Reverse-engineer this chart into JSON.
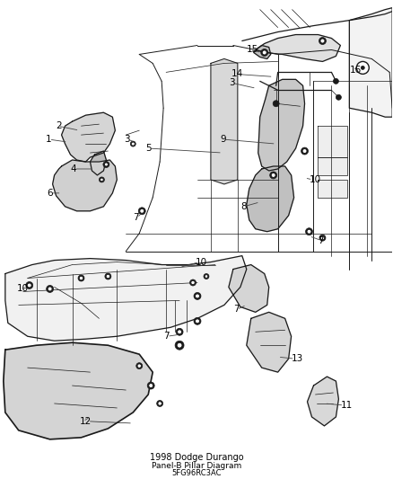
{
  "title": "1998 Dodge Durango",
  "subtitle": "Panel-B Pillar Diagram",
  "part_number": "5FG96RC3AC",
  "figure_width": 4.38,
  "figure_height": 5.33,
  "dpi": 100,
  "bg_color": "#ffffff",
  "line_color": "#1a1a1a",
  "label_color": "#000000",
  "label_fontsize": 7.5,
  "title_fontsize": 7,
  "subtitle_fontsize": 6.5,
  "lw_main": 0.9,
  "lw_thin": 0.5,
  "lw_medium": 0.7
}
